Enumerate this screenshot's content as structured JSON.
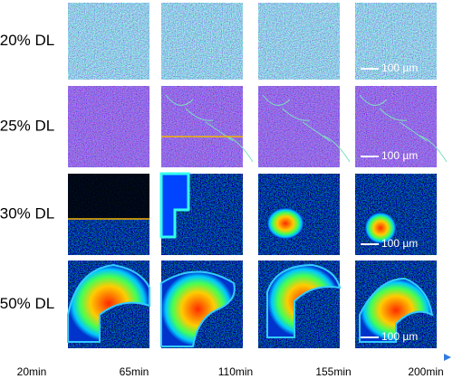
{
  "row_labels": [
    "20% DL",
    "25% DL",
    "30% DL",
    "50% DL"
  ],
  "time_labels": [
    "20min",
    "65min",
    "110min",
    "155min",
    "200min"
  ],
  "scale_bars": [
    "100 µm",
    "100 µm",
    "100 µm",
    "100 µm"
  ]
}
